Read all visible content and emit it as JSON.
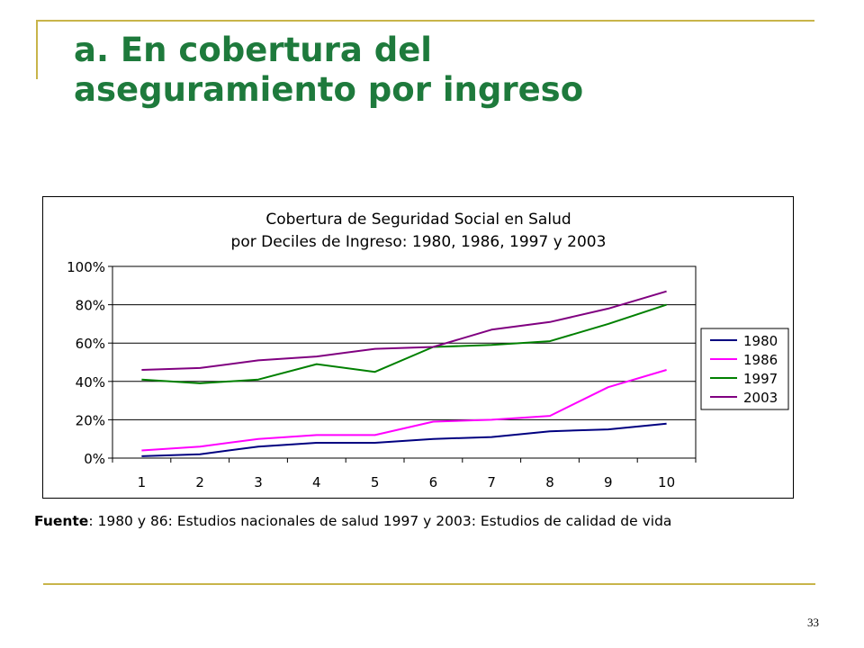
{
  "slide": {
    "title_line1": "a. En cobertura del",
    "title_line2": "aseguramiento por ingreso",
    "title_color": "#1e7a3c",
    "frame_color": "#c8b44a",
    "source_label": "Fuente",
    "source_text": ": 1980 y 86: Estudios nacionales de salud 1997 y 2003: Estudios de calidad de vida",
    "page_number": "33"
  },
  "chart_data": {
    "type": "line",
    "title_line1": "Cobertura de Seguridad Social en Salud",
    "title_line2": "por Deciles de Ingreso: 1980, 1986, 1997 y 2003",
    "xlabel": "",
    "ylabel": "",
    "categories": [
      "1",
      "2",
      "3",
      "4",
      "5",
      "6",
      "7",
      "8",
      "9",
      "10"
    ],
    "y_ticks": [
      "0%",
      "20%",
      "40%",
      "60%",
      "80%",
      "100%"
    ],
    "ylim": [
      0,
      100
    ],
    "grid": true,
    "legend_position": "right",
    "series": [
      {
        "name": "1980",
        "color": "#000080",
        "values": [
          1,
          2,
          6,
          8,
          8,
          10,
          11,
          14,
          15,
          18
        ]
      },
      {
        "name": "1986",
        "color": "#ff00ff",
        "values": [
          4,
          6,
          10,
          12,
          12,
          19,
          20,
          22,
          37,
          46
        ]
      },
      {
        "name": "1997",
        "color": "#008000",
        "values": [
          41,
          39,
          41,
          49,
          45,
          58,
          59,
          61,
          70,
          80
        ]
      },
      {
        "name": "2003",
        "color": "#800080",
        "values": [
          46,
          47,
          51,
          53,
          57,
          58,
          67,
          71,
          78,
          87
        ]
      }
    ]
  }
}
